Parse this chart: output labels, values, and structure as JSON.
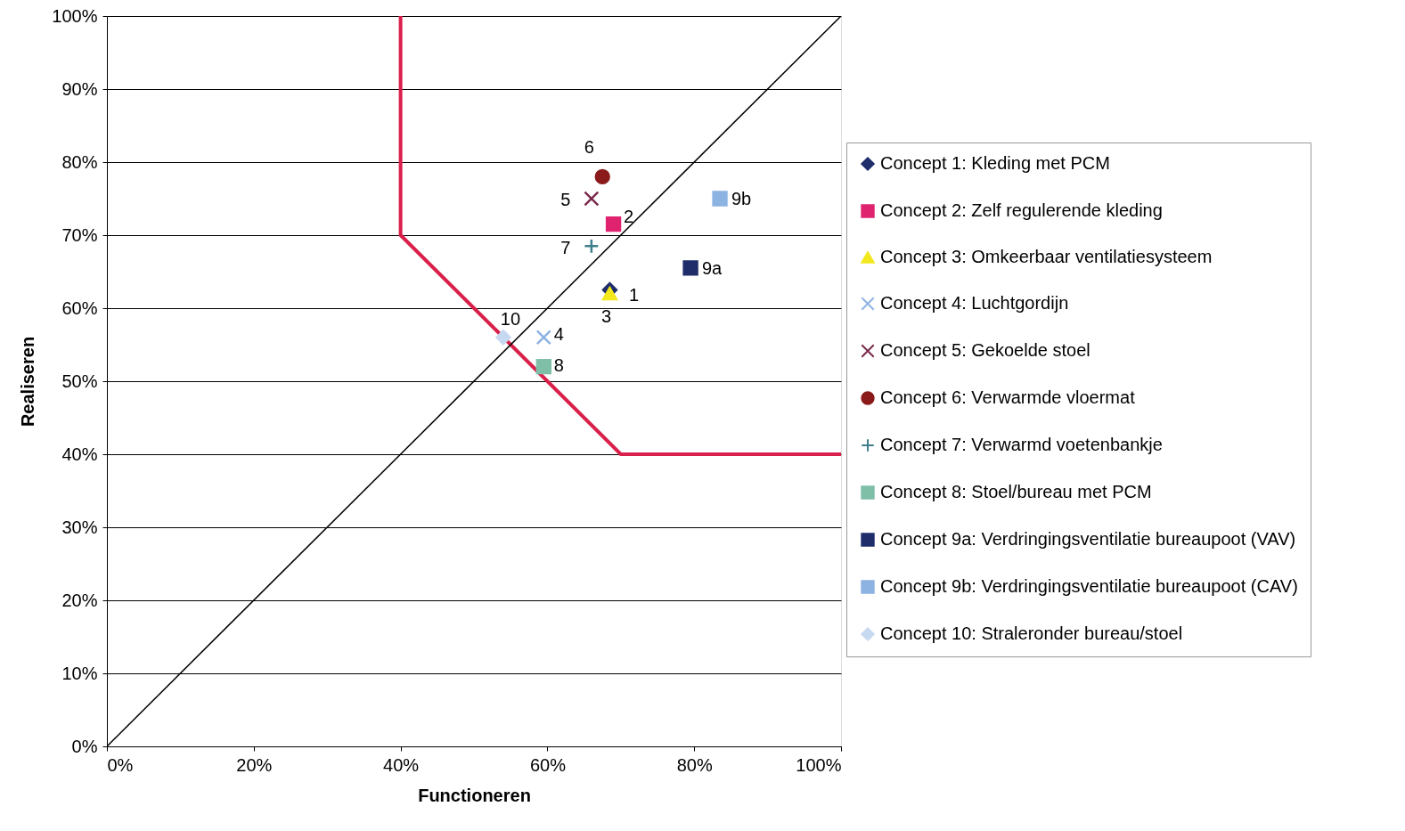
{
  "chart_data": {
    "type": "scatter",
    "xlabel": "Functioneren",
    "ylabel": "Realiseren",
    "xlim": [
      0,
      100
    ],
    "ylim": [
      0,
      100
    ],
    "xticks": [
      {
        "value": 0,
        "label": "0%"
      },
      {
        "value": 20,
        "label": "20%"
      },
      {
        "value": 40,
        "label": "40%"
      },
      {
        "value": 60,
        "label": "60%"
      },
      {
        "value": 80,
        "label": "80%"
      },
      {
        "value": 100,
        "label": "100%"
      }
    ],
    "yticks": [
      {
        "value": 0,
        "label": "0%"
      },
      {
        "value": 10,
        "label": "10%"
      },
      {
        "value": 20,
        "label": "20%"
      },
      {
        "value": 30,
        "label": "30%"
      },
      {
        "value": 40,
        "label": "40%"
      },
      {
        "value": 50,
        "label": "50%"
      },
      {
        "value": 60,
        "label": "60%"
      },
      {
        "value": 70,
        "label": "70%"
      },
      {
        "value": 80,
        "label": "80%"
      },
      {
        "value": 90,
        "label": "90%"
      },
      {
        "value": 100,
        "label": "100%"
      }
    ],
    "grid": "y",
    "legend": "right",
    "series": [
      {
        "type": "line",
        "color": "#d9204a",
        "x": [
          40,
          40,
          70,
          100
        ],
        "values": [
          100,
          70,
          40,
          40
        ],
        "marker": "none"
      },
      {
        "type": "line",
        "color": "#000000",
        "x": [
          0,
          100
        ],
        "values": [
          0,
          100
        ],
        "marker": "none"
      },
      {
        "name": "Concept 1: Kleding met PCM",
        "color": "#1f2d6b",
        "marker": "diamond",
        "x": [
          68.5
        ],
        "values": [
          62.5
        ]
      },
      {
        "name": "Concept 2: Zelf regulerende kleding",
        "color": "#e0236e",
        "marker": "square",
        "x": [
          69
        ],
        "values": [
          71.5
        ]
      },
      {
        "name": "Concept 3: Omkeerbaar ventilatiesysteem",
        "color": "#f2e81c",
        "marker": "triangle",
        "x": [
          68.5
        ],
        "values": [
          62
        ]
      },
      {
        "name": "Concept 4: Luchtgordijn",
        "color": "#8db3e2",
        "marker": "cross",
        "x": [
          59.5
        ],
        "values": [
          56
        ]
      },
      {
        "name": "Concept 5: Gekoelde stoel",
        "color": "#7a2a4c",
        "marker": "cross",
        "x": [
          66
        ],
        "values": [
          75
        ]
      },
      {
        "name": "Concept 6: Verwarmde vloermat",
        "color": "#8b1a1a",
        "marker": "circle",
        "x": [
          67.5
        ],
        "values": [
          78
        ]
      },
      {
        "name": "Concept 7: Verwarmd voetenbankje",
        "color": "#3e7f8c",
        "marker": "plus",
        "x": [
          66
        ],
        "values": [
          68.5
        ]
      },
      {
        "name": "Concept 8: Stoel/bureau met PCM",
        "color": "#7fbfa8",
        "marker": "square",
        "x": [
          59.5
        ],
        "values": [
          52
        ]
      },
      {
        "name": "Concept 9a: Verdringingsventilatie bureaupoot (VAV)",
        "color": "#1f2d6b",
        "marker": "square",
        "x": [
          79.5
        ],
        "values": [
          65.5
        ]
      },
      {
        "name": "Concept 9b: Verdringingsventilatie bureaupoot (CAV)",
        "color": "#8db3e2",
        "marker": "square",
        "x": [
          83.5
        ],
        "values": [
          75
        ]
      },
      {
        "name": "Concept 10: Straleronder bureau/stoel",
        "color": "#c6d9f0",
        "marker": "diamond",
        "x": [
          54
        ],
        "values": [
          56
        ]
      }
    ],
    "annotations": [
      {
        "text": "6",
        "x": 67.5,
        "y": 78
      },
      {
        "text": "5",
        "x": 66,
        "y": 75
      },
      {
        "text": "2",
        "x": 69,
        "y": 71.5
      },
      {
        "text": "7",
        "x": 66,
        "y": 68.5
      },
      {
        "text": "1",
        "x": 68.5,
        "y": 62.5
      },
      {
        "text": "3",
        "x": 68.5,
        "y": 62
      },
      {
        "text": "9a",
        "x": 79.5,
        "y": 65.5
      },
      {
        "text": "9b",
        "x": 83.5,
        "y": 75
      },
      {
        "text": "10",
        "x": 54,
        "y": 56
      },
      {
        "text": "4",
        "x": 59.5,
        "y": 56
      },
      {
        "text": "8",
        "x": 59.5,
        "y": 52
      }
    ]
  }
}
